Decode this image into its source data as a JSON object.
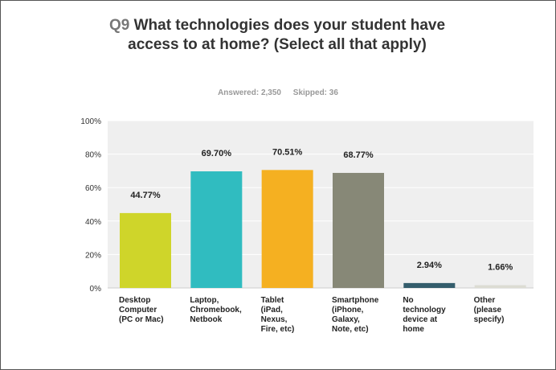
{
  "header": {
    "question_number": "Q9",
    "question_text": "What technologies does your student have access to at home? (Select all that apply)",
    "answered": "Answered: 2,350",
    "skipped": "Skipped: 36"
  },
  "colors": [
    "#cfd52a",
    "#30bcc0",
    "#f5b021",
    "#878877",
    "#345d6c",
    "#dcdcd3"
  ],
  "chart_data": {
    "type": "bar",
    "categories": [
      [
        "Desktop",
        "Computer",
        "(PC or Mac)"
      ],
      [
        "Laptop,",
        "Chromebook,",
        "Netbook"
      ],
      [
        "Tablet",
        "(iPad,",
        "Nexus,",
        "Fire, etc)"
      ],
      [
        "Smartphone",
        "(iPhone,",
        "Galaxy,",
        "Note, etc)"
      ],
      [
        "No",
        "technology",
        "device at",
        "home"
      ],
      [
        "Other",
        "(please",
        "specify)"
      ]
    ],
    "values": [
      44.77,
      69.7,
      70.51,
      68.77,
      2.94,
      1.66
    ],
    "data_labels": [
      "44.77%",
      "69.70%",
      "70.51%",
      "68.77%",
      "2.94%",
      "1.66%"
    ],
    "ylim": [
      0,
      100
    ],
    "yticks": [
      "0%",
      "20%",
      "40%",
      "60%",
      "80%",
      "100%"
    ],
    "grid": true,
    "legend": "none"
  }
}
